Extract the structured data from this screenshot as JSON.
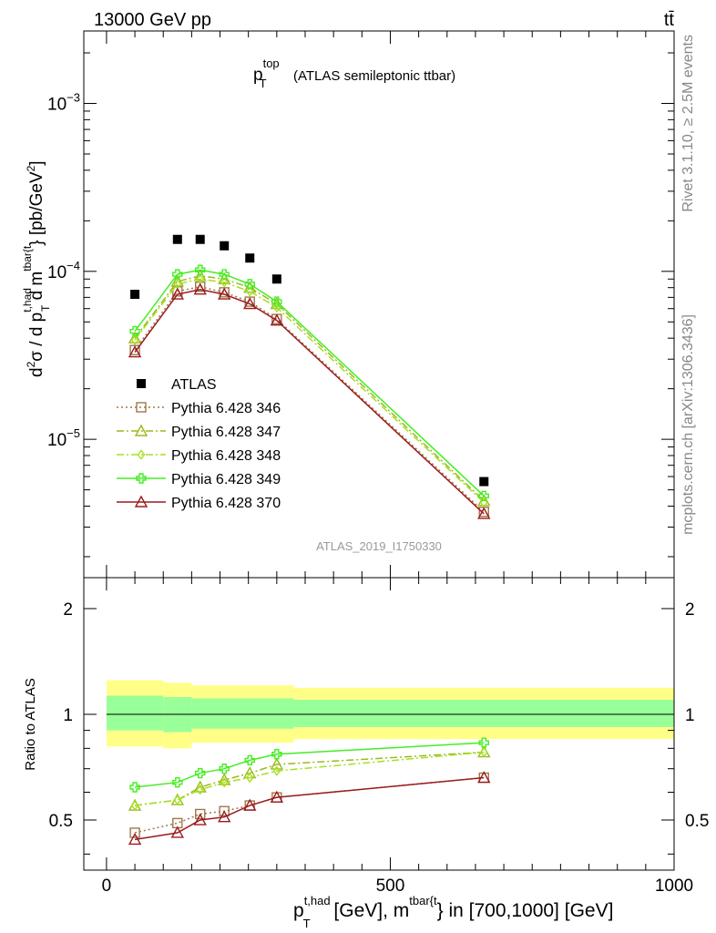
{
  "header": {
    "left": "13000 GeV pp",
    "right": "tt̄"
  },
  "side_labels": {
    "rivet": "Rivet 3.1.10, ≥ 2.5M events",
    "mcplots": "mcplots.cern.ch [arXiv:1306.3436]"
  },
  "chart_data": [
    {
      "type": "scatter",
      "panel": "main",
      "title": "(ATLAS semileptonic ttbar)",
      "title_var": "p",
      "title_sup": "top",
      "title_sub": "T",
      "ylabel": "d²σ / d p_T^{t,had} d m^{tbar{t}} [pb/GeV²]",
      "yscale": "log",
      "ylim": [
        1.5e-06,
        0.0027
      ],
      "xlim": [
        -40,
        1000
      ],
      "ytick_labels": [
        {
          "base": "10",
          "exp": "−3",
          "value": 0.001
        },
        {
          "base": "10",
          "exp": "−4",
          "value": 0.0001
        },
        {
          "base": "10",
          "exp": "−5",
          "value": 1e-05
        }
      ],
      "watermark": "ATLAS_2019_I1750330",
      "legend_position": "lower-left",
      "x": [
        50,
        125,
        165,
        207.5,
        252.5,
        300,
        665
      ],
      "series": [
        {
          "name": "ATLAS",
          "color": "#000000",
          "marker": "square",
          "line": "none",
          "values": [
            7.3e-05,
            0.000155,
            0.000155,
            0.000142,
            0.00012,
            9e-05,
            5.6e-06
          ]
        },
        {
          "name": "Pythia 6.428 346",
          "color": "#a0784a",
          "marker": "open-square",
          "line": "dotted",
          "values": [
            3.4e-05,
            7.6e-05,
            8.1e-05,
            7.5e-05,
            6.6e-05,
            5.2e-05,
            3.7e-06
          ]
        },
        {
          "name": "Pythia 6.428 347",
          "color": "#9aba1e",
          "marker": "open-triangle",
          "line": "dashdot",
          "values": [
            4e-05,
            8.7e-05,
            9.4e-05,
            9e-05,
            8e-05,
            6.4e-05,
            4.3e-06
          ]
        },
        {
          "name": "Pythia 6.428 348",
          "color": "#a6e022",
          "marker": "open-diamond",
          "line": "dashdot",
          "values": [
            3.9e-05,
            8.4e-05,
            9e-05,
            8.6e-05,
            7.6e-05,
            6.1e-05,
            4.2e-06
          ]
        },
        {
          "name": "Pythia 6.428 349",
          "color": "#44ee22",
          "marker": "open-cross",
          "line": "solid",
          "values": [
            4.4e-05,
            9.6e-05,
            0.000102,
            9.6e-05,
            8.4e-05,
            6.6e-05,
            4.6e-06
          ]
        },
        {
          "name": "Pythia 6.428 370",
          "color": "#9b1a1e",
          "marker": "open-triangle",
          "line": "solid",
          "values": [
            3.3e-05,
            7.3e-05,
            7.8e-05,
            7.3e-05,
            6.4e-05,
            5.1e-05,
            3.6e-06
          ]
        }
      ]
    },
    {
      "type": "line",
      "panel": "ratio",
      "ylabel": "Ratio to ATLAS",
      "yscale": "log",
      "ylim": [
        0.36,
        2.45
      ],
      "xlim": [
        -40,
        1000
      ],
      "xlabel": "p_T^{t,had} [GeV], m^{tbar{t}} in [700,1000] [GeV]",
      "xlabel_main": "p",
      "xlabel_sup": "t,had",
      "xlabel_sub": "T",
      "xlabel_mid": " [GeV], m",
      "xlabel_sup2": "tbar{t",
      "xlabel_end": "} in [700,1000] [GeV]",
      "xtick_labels": [
        "0",
        "500",
        "1000"
      ],
      "xtick_values": [
        0,
        500,
        1000
      ],
      "ytick_labels": [
        "0.5",
        "1",
        "2"
      ],
      "ytick_values": [
        0.5,
        1,
        2
      ],
      "bands": {
        "edges": [
          0,
          100,
          150,
          330,
          1000
        ],
        "yellow": [
          [
            0.81,
            1.25
          ],
          [
            0.8,
            1.23
          ],
          [
            0.83,
            1.21
          ],
          [
            0.85,
            1.19
          ]
        ],
        "green": [
          [
            0.9,
            1.13
          ],
          [
            0.89,
            1.12
          ],
          [
            0.91,
            1.11
          ],
          [
            0.92,
            1.1
          ]
        ]
      },
      "x": [
        50,
        125,
        165,
        207.5,
        252.5,
        300,
        665
      ],
      "series": [
        {
          "name": "Pythia 6.428 346",
          "color": "#a0784a",
          "marker": "open-square",
          "line": "dotted",
          "values": [
            0.46,
            0.49,
            0.52,
            0.53,
            0.55,
            0.58,
            0.66
          ]
        },
        {
          "name": "Pythia 6.428 347",
          "color": "#9aba1e",
          "marker": "open-triangle",
          "line": "dashdot",
          "values": [
            0.55,
            0.57,
            0.62,
            0.65,
            0.68,
            0.72,
            0.78
          ]
        },
        {
          "name": "Pythia 6.428 348",
          "color": "#a6e022",
          "marker": "open-diamond",
          "line": "dashdot",
          "values": [
            0.55,
            0.57,
            0.61,
            0.64,
            0.66,
            0.69,
            0.78
          ]
        },
        {
          "name": "Pythia 6.428 349",
          "color": "#44ee22",
          "marker": "open-cross",
          "line": "solid",
          "values": [
            0.62,
            0.64,
            0.68,
            0.7,
            0.74,
            0.77,
            0.83
          ]
        },
        {
          "name": "Pythia 6.428 370",
          "color": "#9b1a1e",
          "marker": "open-triangle",
          "line": "solid",
          "values": [
            0.44,
            0.46,
            0.5,
            0.51,
            0.55,
            0.58,
            0.66
          ]
        }
      ]
    }
  ]
}
